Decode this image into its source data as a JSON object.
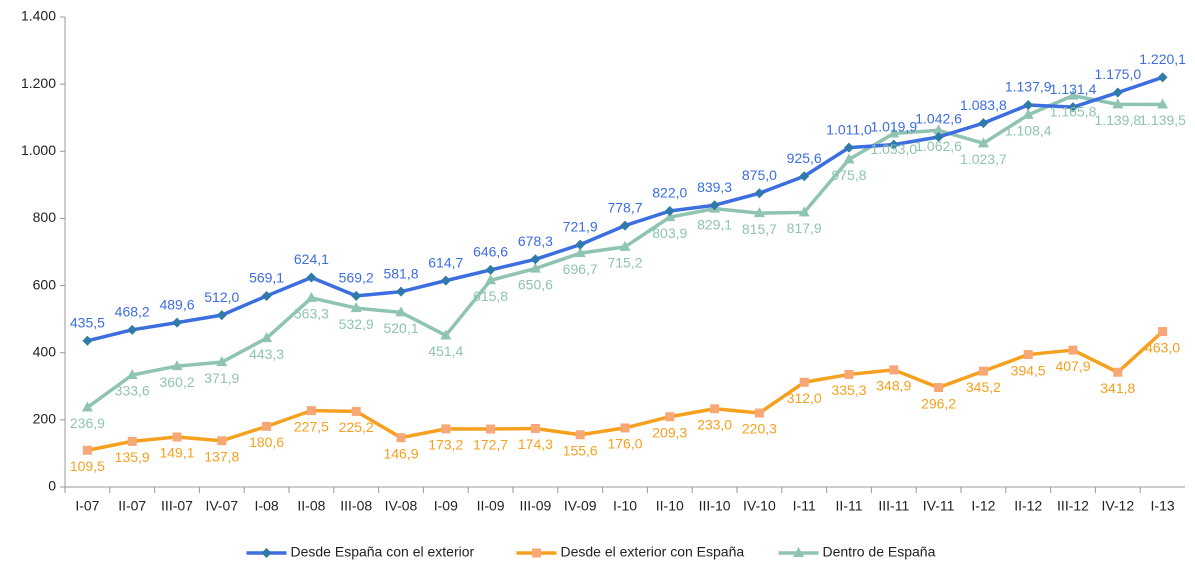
{
  "chart_data": {
    "type": "line",
    "categories": [
      "I-07",
      "II-07",
      "III-07",
      "IV-07",
      "I-08",
      "II-08",
      "III-08",
      "IV-08",
      "I-09",
      "II-09",
      "III-09",
      "IV-09",
      "I-10",
      "II-10",
      "III-10",
      "IV-10",
      "I-11",
      "II-11",
      "III-11",
      "IV-11",
      "I-12",
      "II-12",
      "III-12",
      "IV-12",
      "I-13"
    ],
    "series": [
      {
        "name": "Desde España con el exterior",
        "color": "#3c6ee0",
        "values": [
          435.5,
          468.2,
          489.6,
          512.0,
          569.1,
          624.1,
          569.2,
          581.8,
          614.7,
          646.6,
          678.3,
          721.9,
          778.7,
          822.0,
          839.3,
          875.0,
          925.6,
          1011.0,
          1019.9,
          1042.6,
          1083.8,
          1137.9,
          1131.4,
          1175.0,
          1220.1
        ],
        "value_labels": [
          "435,5",
          "468,2",
          "489,6",
          "512,0",
          "569,1",
          "624,1",
          "569,2",
          "581,8",
          "614,7",
          "646,6",
          "678,3",
          "721,9",
          "778,7",
          "822,0",
          "839,3",
          "875,0",
          "925,6",
          "1.011,0",
          "1.019,9",
          "1.042,6",
          "1.083,8",
          "1.137,9",
          "1.131,4",
          "1.175,0",
          "1.220,1"
        ]
      },
      {
        "name": "Desde el exterior con España",
        "color": "#f5a11f",
        "values": [
          109.5,
          135.9,
          149.1,
          137.8,
          180.6,
          227.5,
          225.2,
          146.9,
          173.2,
          172.7,
          174.3,
          155.6,
          176.0,
          209.3,
          233.0,
          220.3,
          312.0,
          335.3,
          348.9,
          296.2,
          345.2,
          394.5,
          407.9,
          341.8,
          463.0
        ],
        "value_labels": [
          "109,5",
          "135,9",
          "149,1",
          "137,8",
          "180,6",
          "227,5",
          "225,2",
          "146,9",
          "173,2",
          "172,7",
          "174,3",
          "155,6",
          "176,0",
          "209,3",
          "233,0",
          "220,3",
          "312,0",
          "335,3",
          "348,9",
          "296,2",
          "345,2",
          "394,5",
          "407,9",
          "341,8",
          "463,0"
        ]
      },
      {
        "name": "Dentro de España",
        "color": "#8fc4b0",
        "values": [
          236.9,
          333.6,
          360.2,
          371.9,
          443.3,
          563.3,
          532.9,
          520.1,
          451.4,
          615.8,
          650.6,
          696.7,
          715.2,
          803.9,
          829.1,
          815.7,
          817.9,
          975.8,
          1053.0,
          1062.6,
          1023.7,
          1108.4,
          1165.8,
          1139.8,
          1139.5
        ],
        "value_labels": [
          "236,9",
          "333,6",
          "360,2",
          "371,9",
          "443,3",
          "563,3",
          "532,9",
          "520,1",
          "451,4",
          "615,8",
          "650,6",
          "696,7",
          "715,2",
          "803,9",
          "829,1",
          "815,7",
          "817,9",
          "975,8",
          "1.053,0",
          "1.062,6",
          "1.023,7",
          "1.108,4",
          "1.165,8",
          "1.139,8",
          "1.139,5"
        ]
      }
    ],
    "ylim": [
      0,
      1400
    ],
    "yticks": [
      0,
      200,
      400,
      600,
      800,
      {
        "value": 1000,
        "label": "1.000"
      },
      {
        "value": 1200,
        "label": "1.200"
      },
      {
        "value": 1400,
        "label": "1.400"
      }
    ],
    "legend": "bottom"
  }
}
